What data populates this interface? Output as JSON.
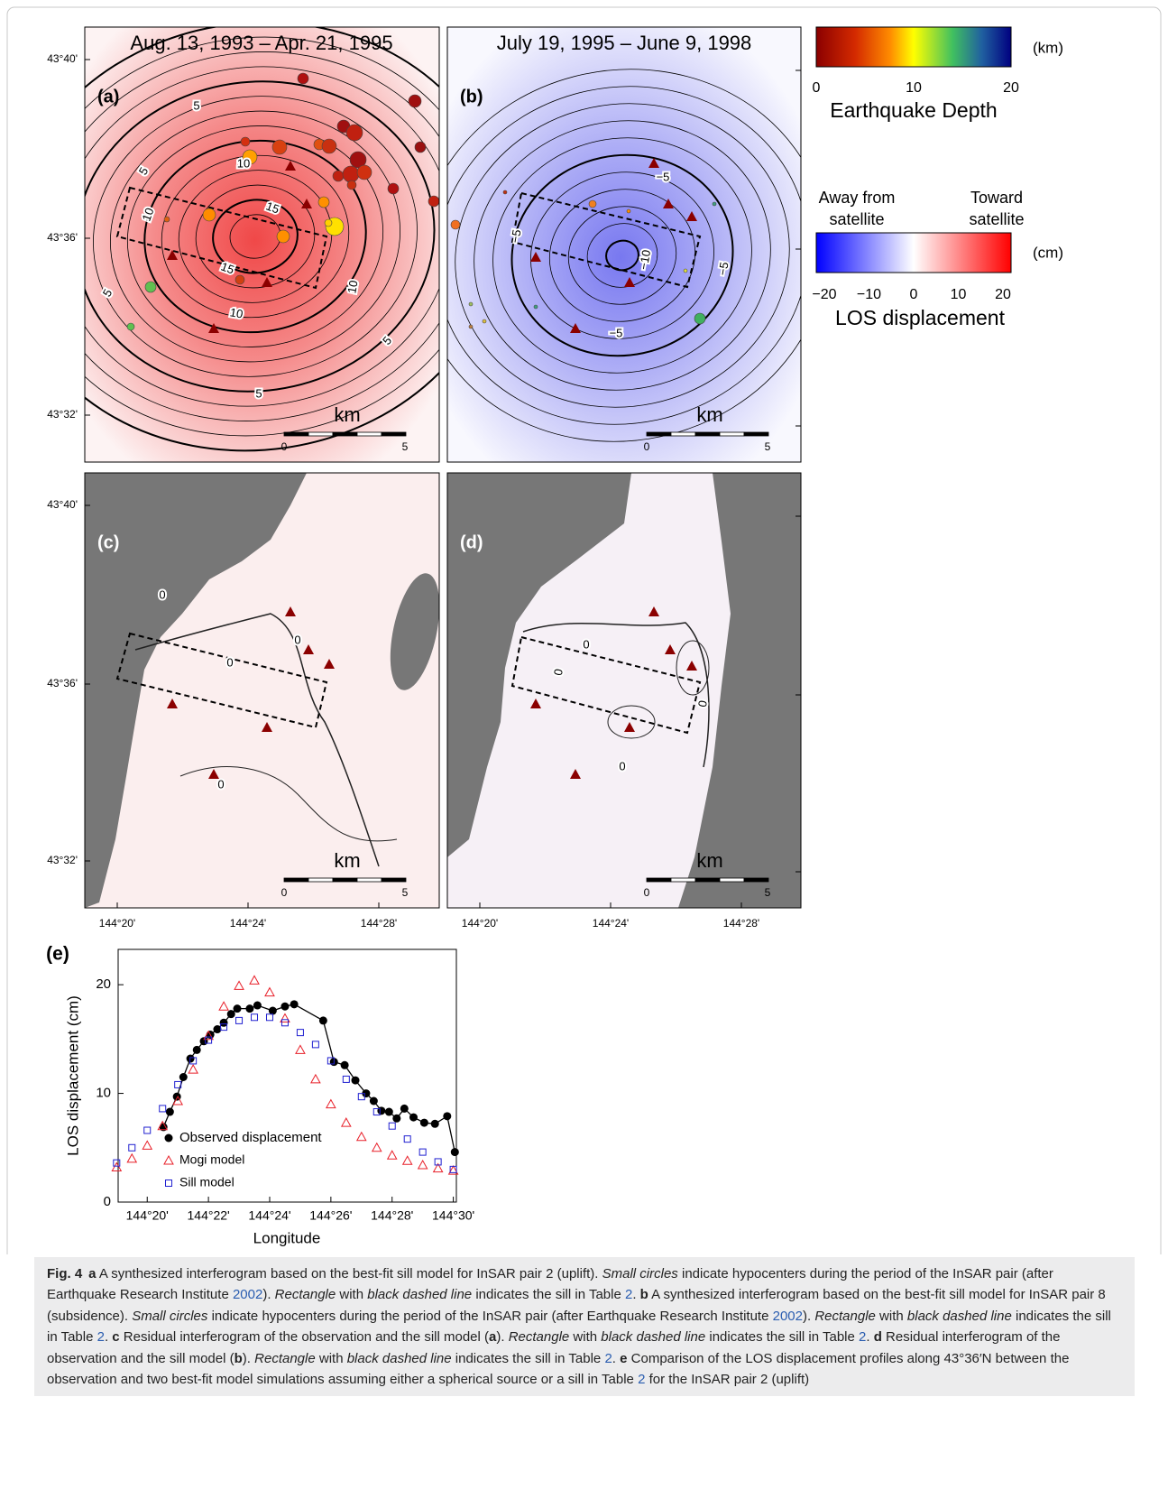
{
  "maps": {
    "panels": [
      {
        "label": "(a)",
        "title": "Aug. 13, 1993 – Apr. 21, 1995",
        "contour_labels": [
          "5",
          "5",
          "10",
          "10",
          "15",
          "15",
          "10",
          "10",
          "5",
          "5",
          "5"
        ],
        "scale_unit": "km",
        "scale_ticks": [
          "0",
          "5"
        ]
      },
      {
        "label": "(b)",
        "title": "July 19, 1995 – June 9, 1998",
        "contour_labels": [
          "−5",
          "−5",
          "−10",
          "−5",
          "−5"
        ],
        "scale_unit": "km",
        "scale_ticks": [
          "0",
          "5"
        ]
      },
      {
        "label": "(c)",
        "contour_labels": [
          "0",
          "0",
          "0",
          "0"
        ],
        "scale_unit": "km",
        "scale_ticks": [
          "0",
          "5"
        ]
      },
      {
        "label": "(d)",
        "contour_labels": [
          "0",
          "0",
          "0",
          "0"
        ],
        "scale_unit": "km",
        "scale_ticks": [
          "0",
          "5"
        ]
      }
    ],
    "lat_ticks": [
      "43°40'",
      "43°36'",
      "43°32'"
    ],
    "lon_ticks": [
      "144°20'",
      "144°24'",
      "144°28'"
    ]
  },
  "depth_colorbar": {
    "ticks": [
      "0",
      "10",
      "20"
    ],
    "unit": "(km)",
    "label": "Earthquake Depth"
  },
  "los_colorbar": {
    "ticks": [
      "−20",
      "−10",
      "0",
      "10",
      "20"
    ],
    "unit": "(cm)",
    "label": "LOS displacement",
    "left_label": [
      "Away from",
      "satellite"
    ],
    "right_label": [
      "Toward",
      "satellite"
    ]
  },
  "chart_data": {
    "type": "scatter",
    "panel_label": "(e)",
    "x_label": "Longitude",
    "y_label": "LOS displacement (cm)",
    "xlim": [
      19.05,
      30.1
    ],
    "ylim": [
      0,
      23.25
    ],
    "xticks": [
      {
        "value": 20,
        "label": "144°20'"
      },
      {
        "value": 22,
        "label": "144°22'"
      },
      {
        "value": 24,
        "label": "144°24'"
      },
      {
        "value": 26,
        "label": "144°26'"
      },
      {
        "value": 28,
        "label": "144°28'"
      },
      {
        "value": 30,
        "label": "144°30'"
      }
    ],
    "yticks": [
      0,
      10,
      20
    ],
    "series": [
      {
        "name": "Observed displacement",
        "color": "#000000",
        "marker": "circle",
        "line": true,
        "x": [
          20.53,
          20.74,
          20.97,
          21.18,
          21.41,
          21.62,
          21.85,
          22.06,
          22.29,
          22.5,
          22.74,
          22.94,
          23.35,
          23.6,
          24.1,
          24.5,
          24.8,
          25.75,
          26.1,
          26.45,
          26.8,
          27.15,
          27.4,
          27.65,
          27.9,
          28.15,
          28.4,
          28.7,
          29.05,
          29.4,
          29.8,
          30.05
        ],
        "values": [
          6.9,
          8.3,
          9.7,
          11.5,
          13.2,
          14.0,
          14.8,
          15.4,
          15.9,
          16.5,
          17.3,
          17.8,
          17.8,
          18.1,
          17.6,
          18.0,
          18.2,
          16.7,
          12.9,
          12.6,
          11.2,
          10.0,
          9.3,
          8.4,
          8.3,
          7.7,
          8.6,
          7.8,
          7.3,
          7.2,
          7.9,
          4.6
        ]
      },
      {
        "name": "Mogi model",
        "color": "#e8202a",
        "marker": "triangle",
        "line": false,
        "x": [
          19,
          19.5,
          20,
          20.5,
          21,
          21.5,
          22,
          22.5,
          23,
          23.5,
          24,
          24.5,
          25,
          25.5,
          26,
          26.5,
          27,
          27.5,
          28,
          28.5,
          29,
          29.5,
          30
        ],
        "values": [
          3.2,
          4.0,
          5.2,
          7.0,
          9.3,
          12.2,
          15.3,
          18.0,
          19.9,
          20.4,
          19.3,
          16.9,
          14.0,
          11.3,
          9.0,
          7.3,
          6.0,
          5.0,
          4.3,
          3.8,
          3.4,
          3.1,
          2.9
        ]
      },
      {
        "name": "Sill model",
        "color": "#2020d0",
        "marker": "square",
        "line": false,
        "x": [
          19,
          19.5,
          20,
          20.5,
          21,
          21.5,
          22,
          22.5,
          23,
          23.5,
          24,
          24.5,
          25,
          25.5,
          26,
          26.5,
          27,
          27.5,
          28,
          28.5,
          29,
          29.5,
          30
        ],
        "values": [
          3.6,
          5.0,
          6.6,
          8.6,
          10.8,
          13.0,
          14.9,
          16.1,
          16.7,
          17.0,
          17.0,
          16.5,
          15.6,
          14.5,
          13.0,
          11.3,
          9.7,
          8.3,
          7.0,
          5.8,
          4.6,
          3.7,
          3.0
        ]
      }
    ]
  },
  "caption": [
    "Fig. 4",
    "a",
    " A synthesized interferogram based on the best-fit sill model for InSAR pair 2 (uplift). ",
    "Small circles",
    " indicate hypocenters during the period of the InSAR pair (after Earthquake Research Institute ",
    "2002",
    "). ",
    "Rectangle",
    " with ",
    "black dashed line",
    " indicates the sill in Table ",
    "2",
    ". ",
    "b",
    " A synthesized interferogram based on the best-fit sill model for InSAR pair 8 (subsidence). ",
    "Small circles",
    " indicate hypocenters during the period of the InSAR pair (after Earthquake Research Institute ",
    "2002",
    "). ",
    "Rectangle",
    " with ",
    "black dashed line",
    " indicates the sill in Table ",
    "2",
    ". ",
    "c",
    " Residual interferogram of the observation and the sill model (",
    "a",
    "). ",
    "Rectangle",
    " with ",
    "black dashed line",
    " indicates the sill in Table ",
    "2",
    ". ",
    "d",
    " Residual interferogram of the observation and the sill model (",
    "b",
    "). ",
    "Rectangle",
    " with ",
    "black dashed line",
    " indicates the sill in Table ",
    "2",
    ". ",
    "e",
    " Comparison of the LOS displacement profiles along 43°36′N between the observation and two best-fit model simulations assuming either a spherical source or a sill in Table ",
    "2",
    " for the InSAR pair 2 (uplift)"
  ]
}
